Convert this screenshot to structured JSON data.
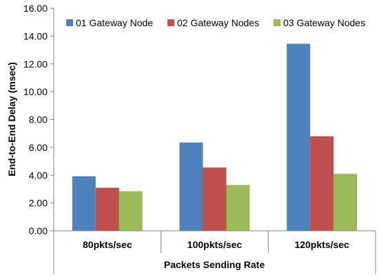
{
  "chart_data": {
    "type": "bar",
    "title": "",
    "xlabel": "Packets Sending Rate",
    "ylabel": "End-to-End Delay (msec)",
    "categories": [
      "80pkts/sec",
      "100pkts/sec",
      "120pkts/sec"
    ],
    "series": [
      {
        "name": "01 Gateway Node",
        "values": [
          3.92,
          6.35,
          13.45
        ],
        "color": "#4f81bd"
      },
      {
        "name": "02 Gateway Nodes",
        "values": [
          3.1,
          4.55,
          6.8
        ],
        "color": "#c0504d"
      },
      {
        "name": "03 Gateway Nodes",
        "values": [
          2.85,
          3.3,
          4.1
        ],
        "color": "#9bbb59"
      }
    ],
    "ylim": [
      0,
      16
    ],
    "yticks": [
      "0.00",
      "2.00",
      "4.00",
      "6.00",
      "8.00",
      "10.00",
      "12.00",
      "14.00",
      "16.00"
    ],
    "grid": false,
    "legend_position": "top-right"
  }
}
